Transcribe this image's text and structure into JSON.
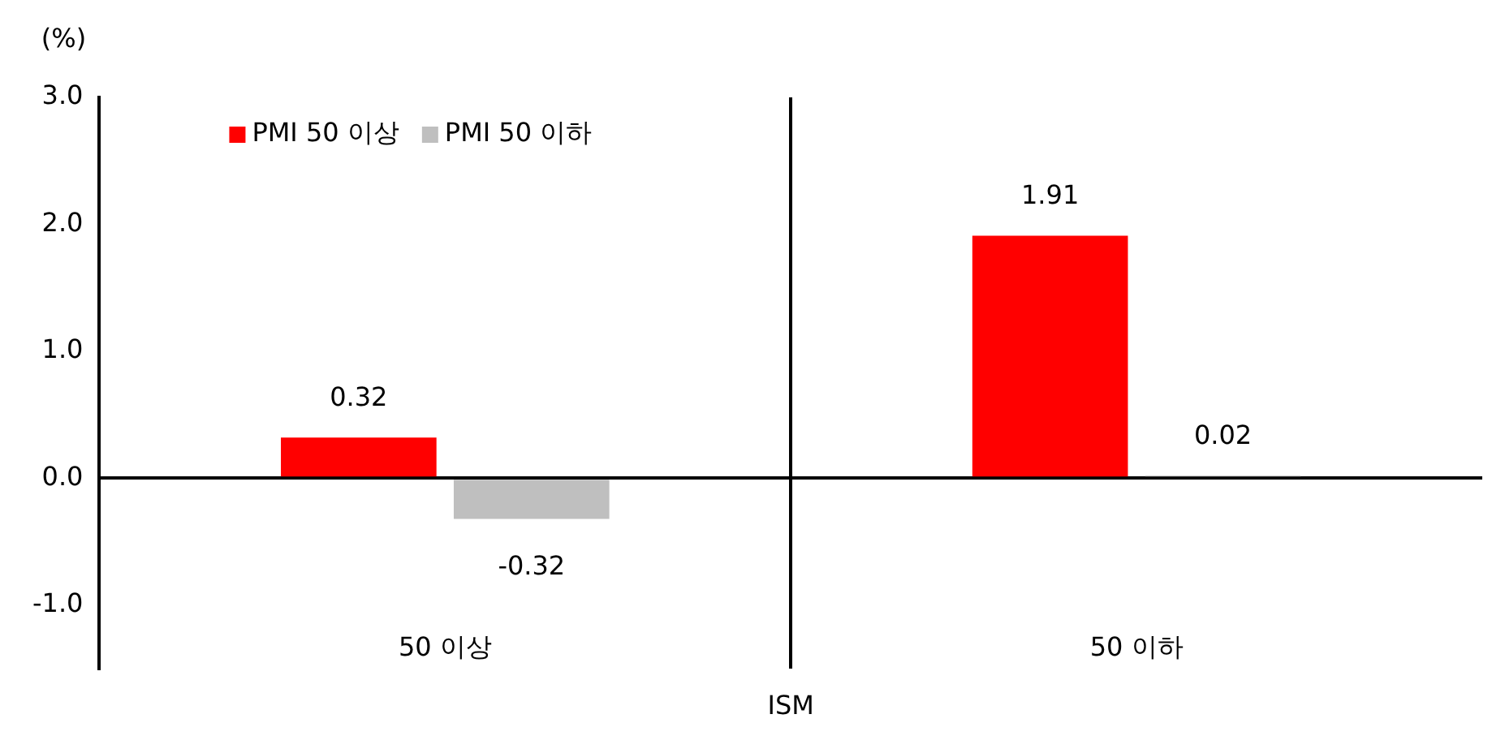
{
  "chart_data": {
    "type": "bar",
    "ylabel": "(%)",
    "xlabel": "ISM",
    "categories": [
      "50 이상",
      "50 이하"
    ],
    "series": [
      {
        "name": "PMI 50 이상",
        "color": "#ff0000",
        "values": [
          0.32,
          1.91
        ]
      },
      {
        "name": "PMI 50 이하",
        "color": "#bfbfbf",
        "values": [
          -0.32,
          0.02
        ]
      }
    ],
    "ylim": [
      -1.5,
      3.0
    ],
    "yticks": [
      {
        "value": -1,
        "label": "-1.0"
      },
      {
        "value": 0,
        "label": "0.0"
      },
      {
        "value": 1,
        "label": "1.0"
      },
      {
        "value": 2,
        "label": "2.0"
      },
      {
        "value": 3,
        "label": "3.0"
      }
    ],
    "legend": "top left",
    "data_labels": true
  }
}
